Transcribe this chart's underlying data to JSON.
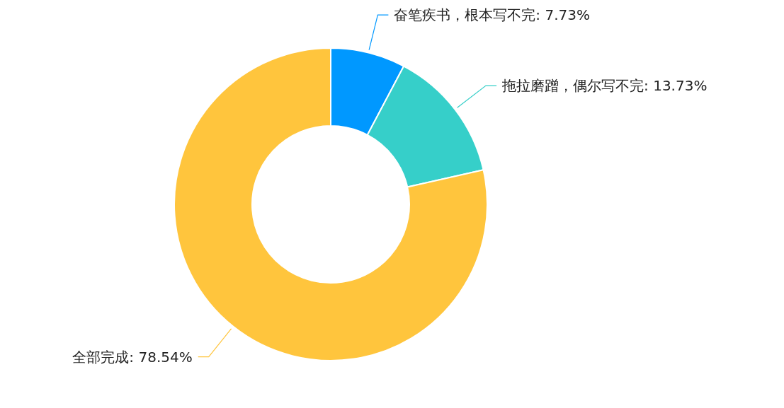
{
  "chart_data": {
    "type": "donut",
    "categories": [
      "奋笔疾书，根本写不完",
      "拖拉磨蹭，偶尔写不完",
      "全部完成"
    ],
    "values": [
      7.73,
      13.73,
      78.54
    ],
    "colors": [
      "#0098ff",
      "#36cfc9",
      "#ffc53d"
    ],
    "value_labels": [
      "7.73%",
      "13.73%",
      "78.54%"
    ],
    "legend": false
  }
}
